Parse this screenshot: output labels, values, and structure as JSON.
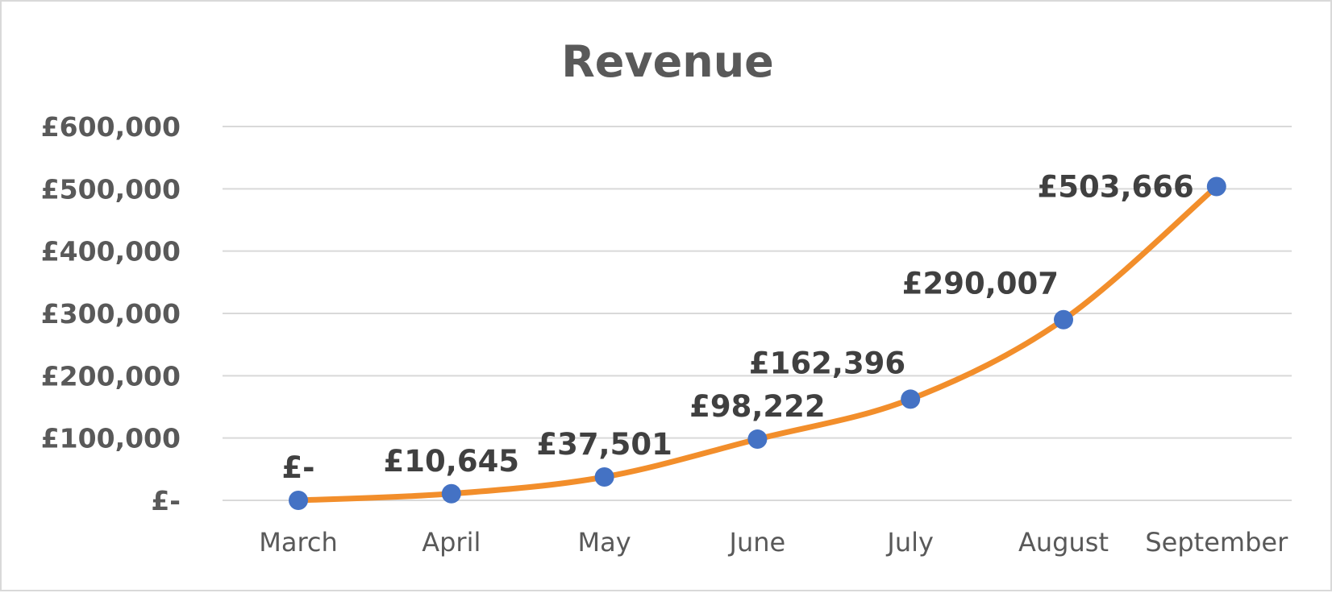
{
  "chart_data": {
    "type": "line",
    "title": "Revenue",
    "categories": [
      "March",
      "April",
      "May",
      "June",
      "July",
      "August",
      "September"
    ],
    "values": [
      0,
      10645,
      37501,
      98222,
      162396,
      290007,
      503666
    ],
    "data_labels": [
      "£-",
      "£10,645",
      "£37,501",
      "£98,222",
      "£162,396",
      "£290,007",
      "£503,666"
    ],
    "ylim": [
      0,
      600000
    ],
    "yticks": [
      0,
      100000,
      200000,
      300000,
      400000,
      500000,
      600000
    ],
    "ytick_labels": [
      "£-",
      "£100,000",
      "£200,000",
      "£300,000",
      "£400,000",
      "£500,000",
      "£600,000"
    ],
    "xlabel": "",
    "ylabel": "",
    "grid": true,
    "legend": "none",
    "colors": {
      "line": "#f28e2b",
      "marker": "#4472c4",
      "grid": "#d9d9d9",
      "text": "#595959",
      "label": "#404040"
    }
  }
}
